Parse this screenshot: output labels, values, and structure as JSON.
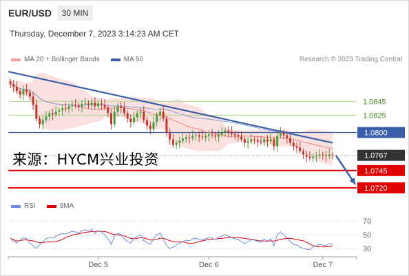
{
  "header": {
    "pair": "EUR/USD",
    "timeframe": "30 MIN",
    "datetime": "Thursday, December 7, 2023 3:14:23 AM CET"
  },
  "legend": {
    "ma20": {
      "label": "MA 20 + Bollinger Bands",
      "color": "#f4a0a0"
    },
    "ma50": {
      "label": "MA 50",
      "color": "#3a5ea8"
    }
  },
  "credit": "Research © 2023 Trading Central",
  "watermark": "来源：HYCM兴业投资",
  "colors": {
    "up": "#4a9a3a",
    "down": "#c0392b",
    "trendline": "#3a5ea8",
    "support": "#e00000",
    "resistance_green": "#a9d58a",
    "resistance_blue": "#3a5ea8",
    "price_box": "#333333"
  },
  "chart_data": {
    "type": "candlestick",
    "ylim": [
      1.0708,
      1.0892
    ],
    "x_ticks": [
      "Dec 5",
      "Dec 6",
      "Dec 7"
    ],
    "levels": [
      {
        "label": "1.0845",
        "value": 1.0845,
        "style": "green-line"
      },
      {
        "label": "1.0825",
        "value": 1.0825,
        "style": "green-line"
      },
      {
        "label": "1.0800",
        "value": 1.08,
        "style": "blue-box"
      },
      {
        "label": "1.0767",
        "value": 1.0767,
        "style": "current-price"
      },
      {
        "label": "1.0745",
        "value": 1.0745,
        "style": "red-box"
      },
      {
        "label": "1.0720",
        "value": 1.072,
        "style": "red-box"
      }
    ],
    "trendline": {
      "from": {
        "bar": 0,
        "value": 1.0888
      },
      "to": {
        "bar": 99,
        "value": 1.0785
      }
    },
    "forecast_arrow": {
      "from": {
        "bar": 100,
        "value": 1.0767
      },
      "to": {
        "bar": 106,
        "value": 1.0725
      }
    },
    "closes": [
      1.087,
      1.0866,
      1.086,
      1.0855,
      1.0862,
      1.0858,
      1.0852,
      1.084,
      1.082,
      1.0812,
      1.0818,
      1.0823,
      1.0828,
      1.0826,
      1.083,
      1.0832,
      1.0835,
      1.0834,
      1.0838,
      1.084,
      1.0839,
      1.0837,
      1.0841,
      1.0842,
      1.084,
      1.0843,
      1.0838,
      1.0842,
      1.084,
      1.0836,
      1.0828,
      1.0812,
      1.083,
      1.0838,
      1.0836,
      1.0828,
      1.082,
      1.0815,
      1.0822,
      1.0828,
      1.083,
      1.0818,
      1.081,
      1.0805,
      1.0815,
      1.0825,
      1.083,
      1.082,
      1.08,
      1.079,
      1.0782,
      1.0785,
      1.0788,
      1.0791,
      1.0793,
      1.0792,
      1.0795,
      1.0796,
      1.0794,
      1.0793,
      1.0795,
      1.0797,
      1.0796,
      1.0794,
      1.0797,
      1.08,
      1.0803,
      1.0801,
      1.0798,
      1.0796,
      1.0794,
      1.079,
      1.0785,
      1.0787,
      1.079,
      1.0789,
      1.0787,
      1.0786,
      1.079,
      1.0787,
      1.079,
      1.078,
      1.0795,
      1.08,
      1.0796,
      1.0792,
      1.0785,
      1.078,
      1.0778,
      1.0773,
      1.0768,
      1.0765,
      1.0763,
      1.0765,
      1.0766,
      1.0768,
      1.0767,
      1.0766,
      1.0768,
      1.0767
    ],
    "rsi": {
      "ylim": [
        25,
        75
      ],
      "ticks": [
        70,
        50,
        30
      ],
      "series": [
        {
          "name": "RSI",
          "color": "#6b8bd6"
        },
        {
          "name": "9MA",
          "color": "#e00000"
        }
      ],
      "rsi_values": [
        45,
        40,
        38,
        42,
        46,
        44,
        38,
        34,
        30,
        35,
        40,
        44,
        46,
        45,
        48,
        50,
        52,
        51,
        53,
        55,
        54,
        52,
        56,
        57,
        55,
        58,
        52,
        56,
        54,
        50,
        44,
        36,
        48,
        52,
        50,
        44,
        40,
        38,
        44,
        48,
        50,
        42,
        38,
        36,
        44,
        50,
        52,
        44,
        34,
        30,
        32,
        35,
        38,
        40,
        42,
        41,
        44,
        45,
        43,
        42,
        44,
        46,
        45,
        43,
        46,
        48,
        50,
        48,
        46,
        44,
        43,
        40,
        37,
        40,
        43,
        42,
        40,
        39,
        44,
        41,
        44,
        34,
        50,
        54,
        50,
        46,
        40,
        36,
        35,
        32,
        30,
        29,
        28,
        32,
        34,
        36,
        35,
        34,
        37,
        36
      ]
    }
  }
}
